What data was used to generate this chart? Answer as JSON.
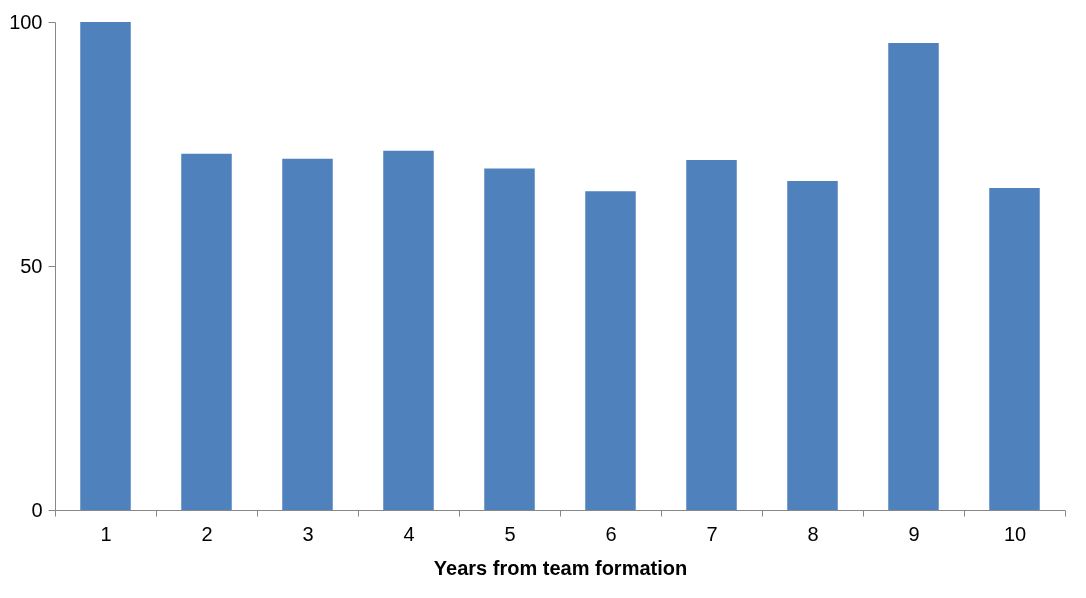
{
  "chart_data": {
    "type": "bar",
    "xlabel": "Years from team formation",
    "categories": [
      "1",
      "2",
      "3",
      "4",
      "5",
      "6",
      "7",
      "8",
      "9",
      "10"
    ],
    "values": [
      100,
      73,
      72,
      73.6,
      70,
      65.3,
      71.7,
      67.4,
      95.7,
      66
    ],
    "color": "#4f81bd",
    "ylim": [
      0,
      100
    ],
    "yticks": [
      0,
      50,
      100
    ],
    "grid": false
  }
}
